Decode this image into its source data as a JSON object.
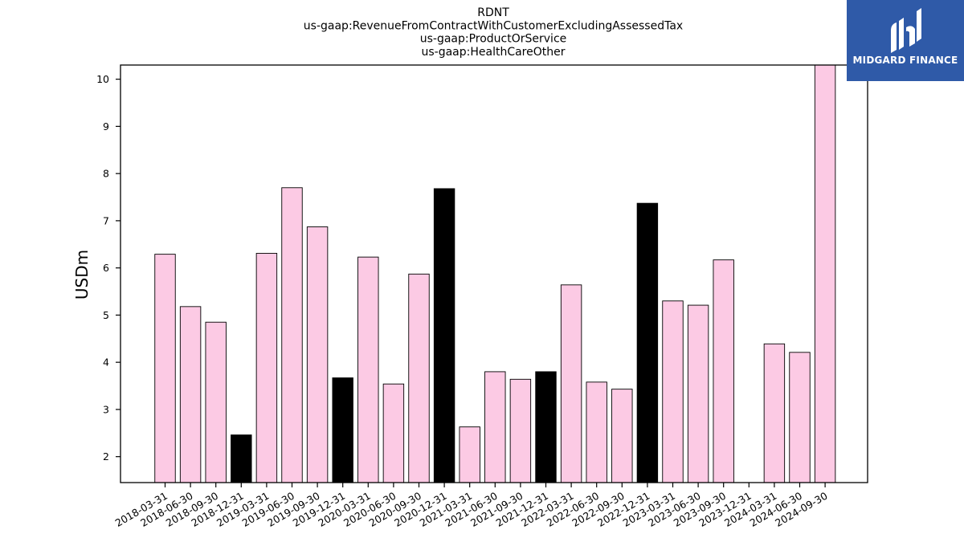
{
  "chart_data": {
    "type": "bar",
    "title_lines": [
      "RDNT",
      "us-gaap:RevenueFromContractWithCustomerExcludingAssessedTax",
      "us-gaap:ProductOrService",
      "us-gaap:HealthCareOther"
    ],
    "ylabel": "USDm",
    "xlabel": "",
    "ylim": [
      1.45,
      10.3
    ],
    "yticks": [
      2,
      3,
      4,
      5,
      6,
      7,
      8,
      9,
      10
    ],
    "categories": [
      "2018-03-31",
      "2018-06-30",
      "2018-09-30",
      "2018-12-31",
      "2019-03-31",
      "2019-06-30",
      "2019-09-30",
      "2019-12-31",
      "2020-03-31",
      "2020-06-30",
      "2020-09-30",
      "2020-12-31",
      "2021-03-31",
      "2021-06-30",
      "2021-09-30",
      "2021-12-31",
      "2022-03-31",
      "2022-06-30",
      "2022-09-30",
      "2022-12-31",
      "2023-03-31",
      "2023-06-30",
      "2023-09-30",
      "2023-12-31",
      "2024-03-31",
      "2024-06-30",
      "2024-09-30"
    ],
    "values": [
      6.29,
      5.18,
      4.85,
      2.46,
      6.31,
      7.7,
      6.87,
      3.67,
      6.23,
      3.54,
      5.87,
      7.68,
      2.63,
      3.8,
      3.64,
      3.8,
      5.64,
      3.58,
      3.43,
      7.37,
      5.3,
      5.21,
      6.17,
      null,
      4.39,
      4.21,
      10.3
    ],
    "highlight": [
      false,
      false,
      false,
      true,
      false,
      false,
      false,
      true,
      false,
      false,
      false,
      true,
      false,
      false,
      false,
      true,
      false,
      false,
      false,
      true,
      false,
      false,
      false,
      true,
      false,
      false,
      false
    ],
    "colors": {
      "bar": "#fccae4",
      "highlight_bar": "#000000",
      "edge": "#000000"
    },
    "grid": false,
    "legend": "none"
  },
  "logo": {
    "text": "MIDGARD FINANCE",
    "background": "#2f5aa8"
  }
}
